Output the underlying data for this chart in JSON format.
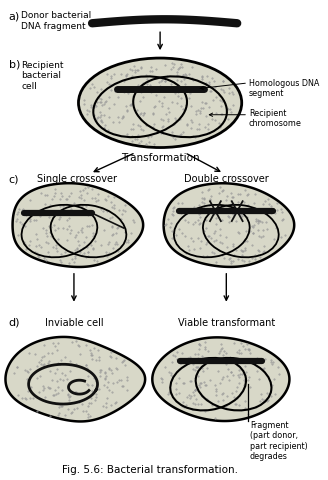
{
  "title": "Fig. 5.6: Bacterial transformation.",
  "background_color": "#ffffff",
  "cell_fill": "#d8d8c8",
  "label_color": "#000000",
  "labels": {
    "a": "a)",
    "b": "b)",
    "c": "c)",
    "d": "d)",
    "donor": "Donor bacterial\nDNA fragment",
    "homologous": "Homologous DNA\nsegment",
    "recipient_cell": "Recipient\nbacterial\ncell",
    "recipient_chrom": "Recipient\nchromosome",
    "transformation": "Transformation",
    "single": "Single crossover",
    "double": "Double crossover",
    "inviable": "Inviable cell",
    "viable": "Viable transformant",
    "fragment": "Fragment\n(part donor,\npart recipient)\ndegrades"
  }
}
